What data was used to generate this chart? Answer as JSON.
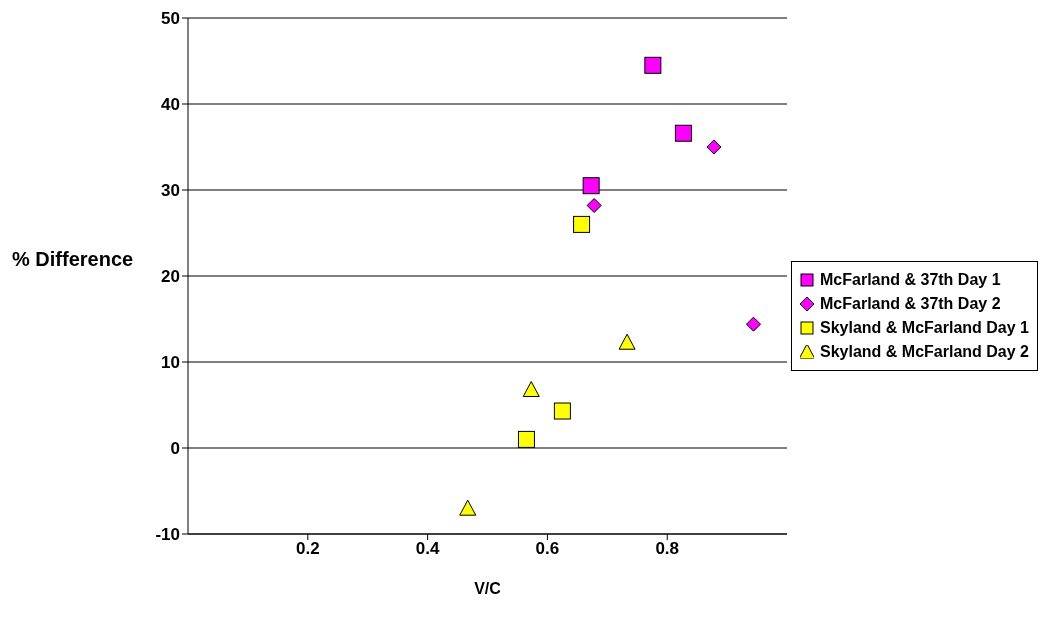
{
  "chart_data": {
    "type": "scatter",
    "xlabel": "V/C",
    "ylabel": "% Difference",
    "xlim": [
      0,
      1
    ],
    "xticks": [
      0.2,
      0.4,
      0.6,
      0.8
    ],
    "ylim": [
      -10,
      50
    ],
    "yticks": [
      -10,
      0,
      10,
      20,
      30,
      40,
      50
    ],
    "grid": "y",
    "legend": "right",
    "series": [
      {
        "name": "McFarland & 37th Day 1",
        "color": "#ff00ff",
        "marker": "square",
        "x": [
          0.776,
          0.827,
          0.673
        ],
        "values": [
          44.5,
          36.6,
          30.5
        ]
      },
      {
        "name": "McFarland & 37th Day 2",
        "color": "#ff00ff",
        "marker": "diamond",
        "x": [
          0.878,
          0.678,
          0.944
        ],
        "values": [
          35.0,
          28.2,
          14.4
        ]
      },
      {
        "name": "Skyland & McFarland Day 1",
        "color": "#ffff00",
        "marker": "square",
        "x": [
          0.657,
          0.625,
          0.565
        ],
        "values": [
          26.0,
          4.3,
          1.0
        ]
      },
      {
        "name": "Skyland & McFarland Day 2",
        "color": "#ffff00",
        "marker": "triangle",
        "x": [
          0.467,
          0.573,
          0.733
        ],
        "values": [
          -7.0,
          6.8,
          12.3
        ]
      }
    ]
  }
}
